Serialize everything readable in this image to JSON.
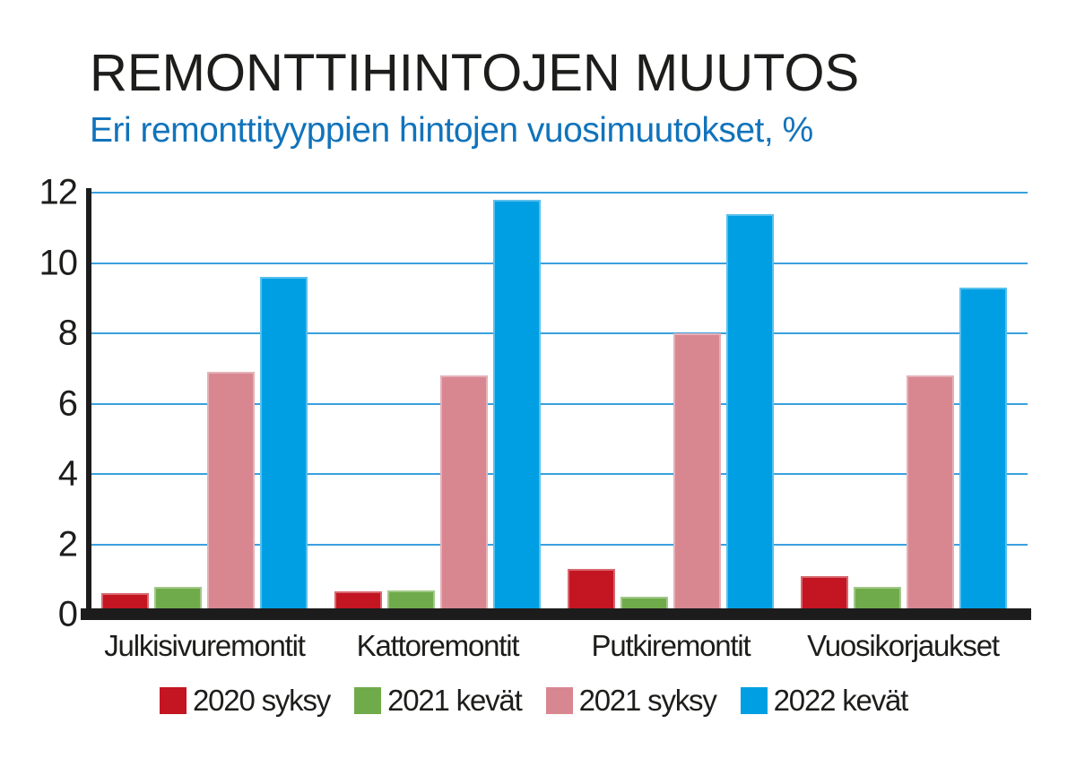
{
  "chart_data": {
    "type": "bar",
    "title": "REMONTTIHINTOJEN MUUTOS",
    "subtitle": "Eri remonttityyppien hintojen vuosimuutokset, %",
    "categories": [
      "Julkisivuremontit",
      "Kattoremontit",
      "Putkiremontit",
      "Vuosikorjaukset"
    ],
    "series": [
      {
        "name": "2020 syksy",
        "color": "#c31622",
        "values": [
          0.6,
          0.65,
          1.3,
          1.1
        ]
      },
      {
        "name": "2021 kevät",
        "color": "#70ab4b",
        "values": [
          0.8,
          0.7,
          0.5,
          0.8
        ]
      },
      {
        "name": "2021 syksy",
        "color": "#d88791",
        "values": [
          6.9,
          6.8,
          8.0,
          6.8
        ]
      },
      {
        "name": "2022 kevät",
        "color": "#009fe3",
        "values": [
          9.6,
          11.8,
          11.4,
          9.3
        ]
      }
    ],
    "ylabel": "",
    "xlabel": "",
    "ylim": [
      0,
      12
    ],
    "ytick_values": [
      0,
      2,
      4,
      6,
      8,
      10,
      12
    ],
    "ytick_labels": [
      "0",
      "2",
      "4",
      "6",
      "8",
      "10",
      "12"
    ],
    "grid": true,
    "gridline_values": [
      2,
      4,
      6,
      8,
      10,
      12
    ],
    "legend_position": "bottom",
    "colors": {
      "gridline": "#3aa0de",
      "axis": "#1c1c1c",
      "title_text": "#1d1d1b",
      "subtitle_text": "#1173bb",
      "label_text": "#1d1d1b"
    }
  }
}
